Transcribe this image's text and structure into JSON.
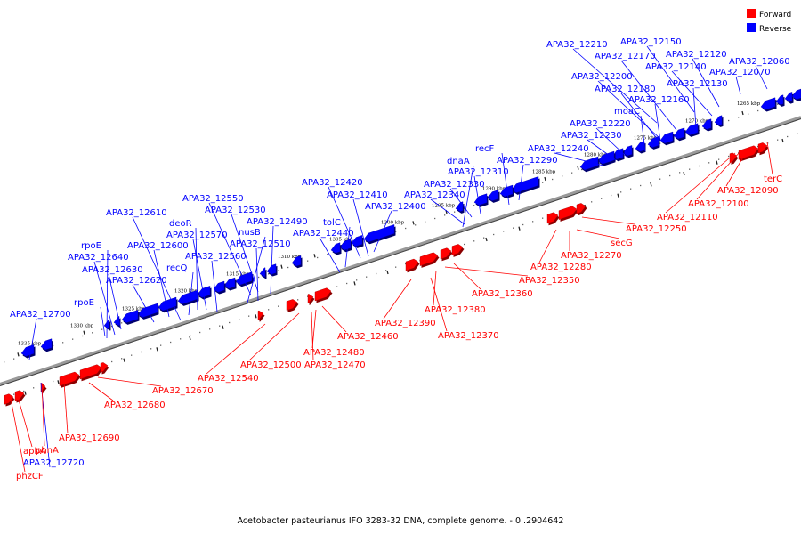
{
  "caption": "Acetobacter pasteurianus IFO 3283-32 DNA, complete genome. - 0..2904642",
  "legend": [
    {
      "label": "Forward",
      "color": "#ff0000"
    },
    {
      "label": "Reverse",
      "color": "#0000ff"
    }
  ],
  "colors": {
    "forward": "#ff0000",
    "reverse": "#0000ff",
    "axis": "#888888"
  },
  "kbp_ticks": [
    "1265 kbp",
    "1270 kbp",
    "1275 kbp",
    "1280 kbp",
    "1285 kbp",
    "1290 kbp",
    "1295 kbp",
    "1300 kbp",
    "1305 kbp",
    "1310 kbp",
    "1315 kbp",
    "1320 kbp",
    "1325 kbp",
    "1330 kbp",
    "1335 kbp"
  ],
  "reverse_labels": [
    "APA32_12060",
    "APA32_12070",
    "APA32_12120",
    "APA32_12150",
    "APA32_12210",
    "APA32_12140",
    "APA32_12170",
    "APA32_12130",
    "APA32_12200",
    "APA32_12180",
    "APA32_12160",
    "moaC",
    "APA32_12220",
    "APA32_12230",
    "APA32_12240",
    "recF",
    "dnaA",
    "APA32_12290",
    "APA32_12310",
    "APA32_12330",
    "APA32_12340",
    "APA32_12420",
    "APA32_12410",
    "APA32_12400",
    "APA32_12550",
    "APA32_12530",
    "APA32_12490",
    "tolC",
    "APA32_12440",
    "APA32_12610",
    "deoR",
    "APA32_12570",
    "nusB",
    "APA32_12510",
    "rpoE",
    "APA32_12600",
    "APA32_12640",
    "APA32_12560",
    "recQ",
    "APA32_12630",
    "APA32_12620",
    "rpoE",
    "APA32_12700",
    "APA32_12720"
  ],
  "forward_labels": [
    "terC",
    "APA32_12090",
    "APA32_12100",
    "APA32_12110",
    "APA32_12250",
    "secG",
    "APA32_12270",
    "APA32_12280",
    "APA32_12350",
    "APA32_12360",
    "APA32_12380",
    "APA32_12370",
    "APA32_12390",
    "APA32_12460",
    "APA32_12480",
    "APA32_12470",
    "APA32_12500",
    "APA32_12540",
    "APA32_12670",
    "APA32_12680",
    "APA32_12690",
    "phnA",
    "apbA",
    "phzCF"
  ]
}
